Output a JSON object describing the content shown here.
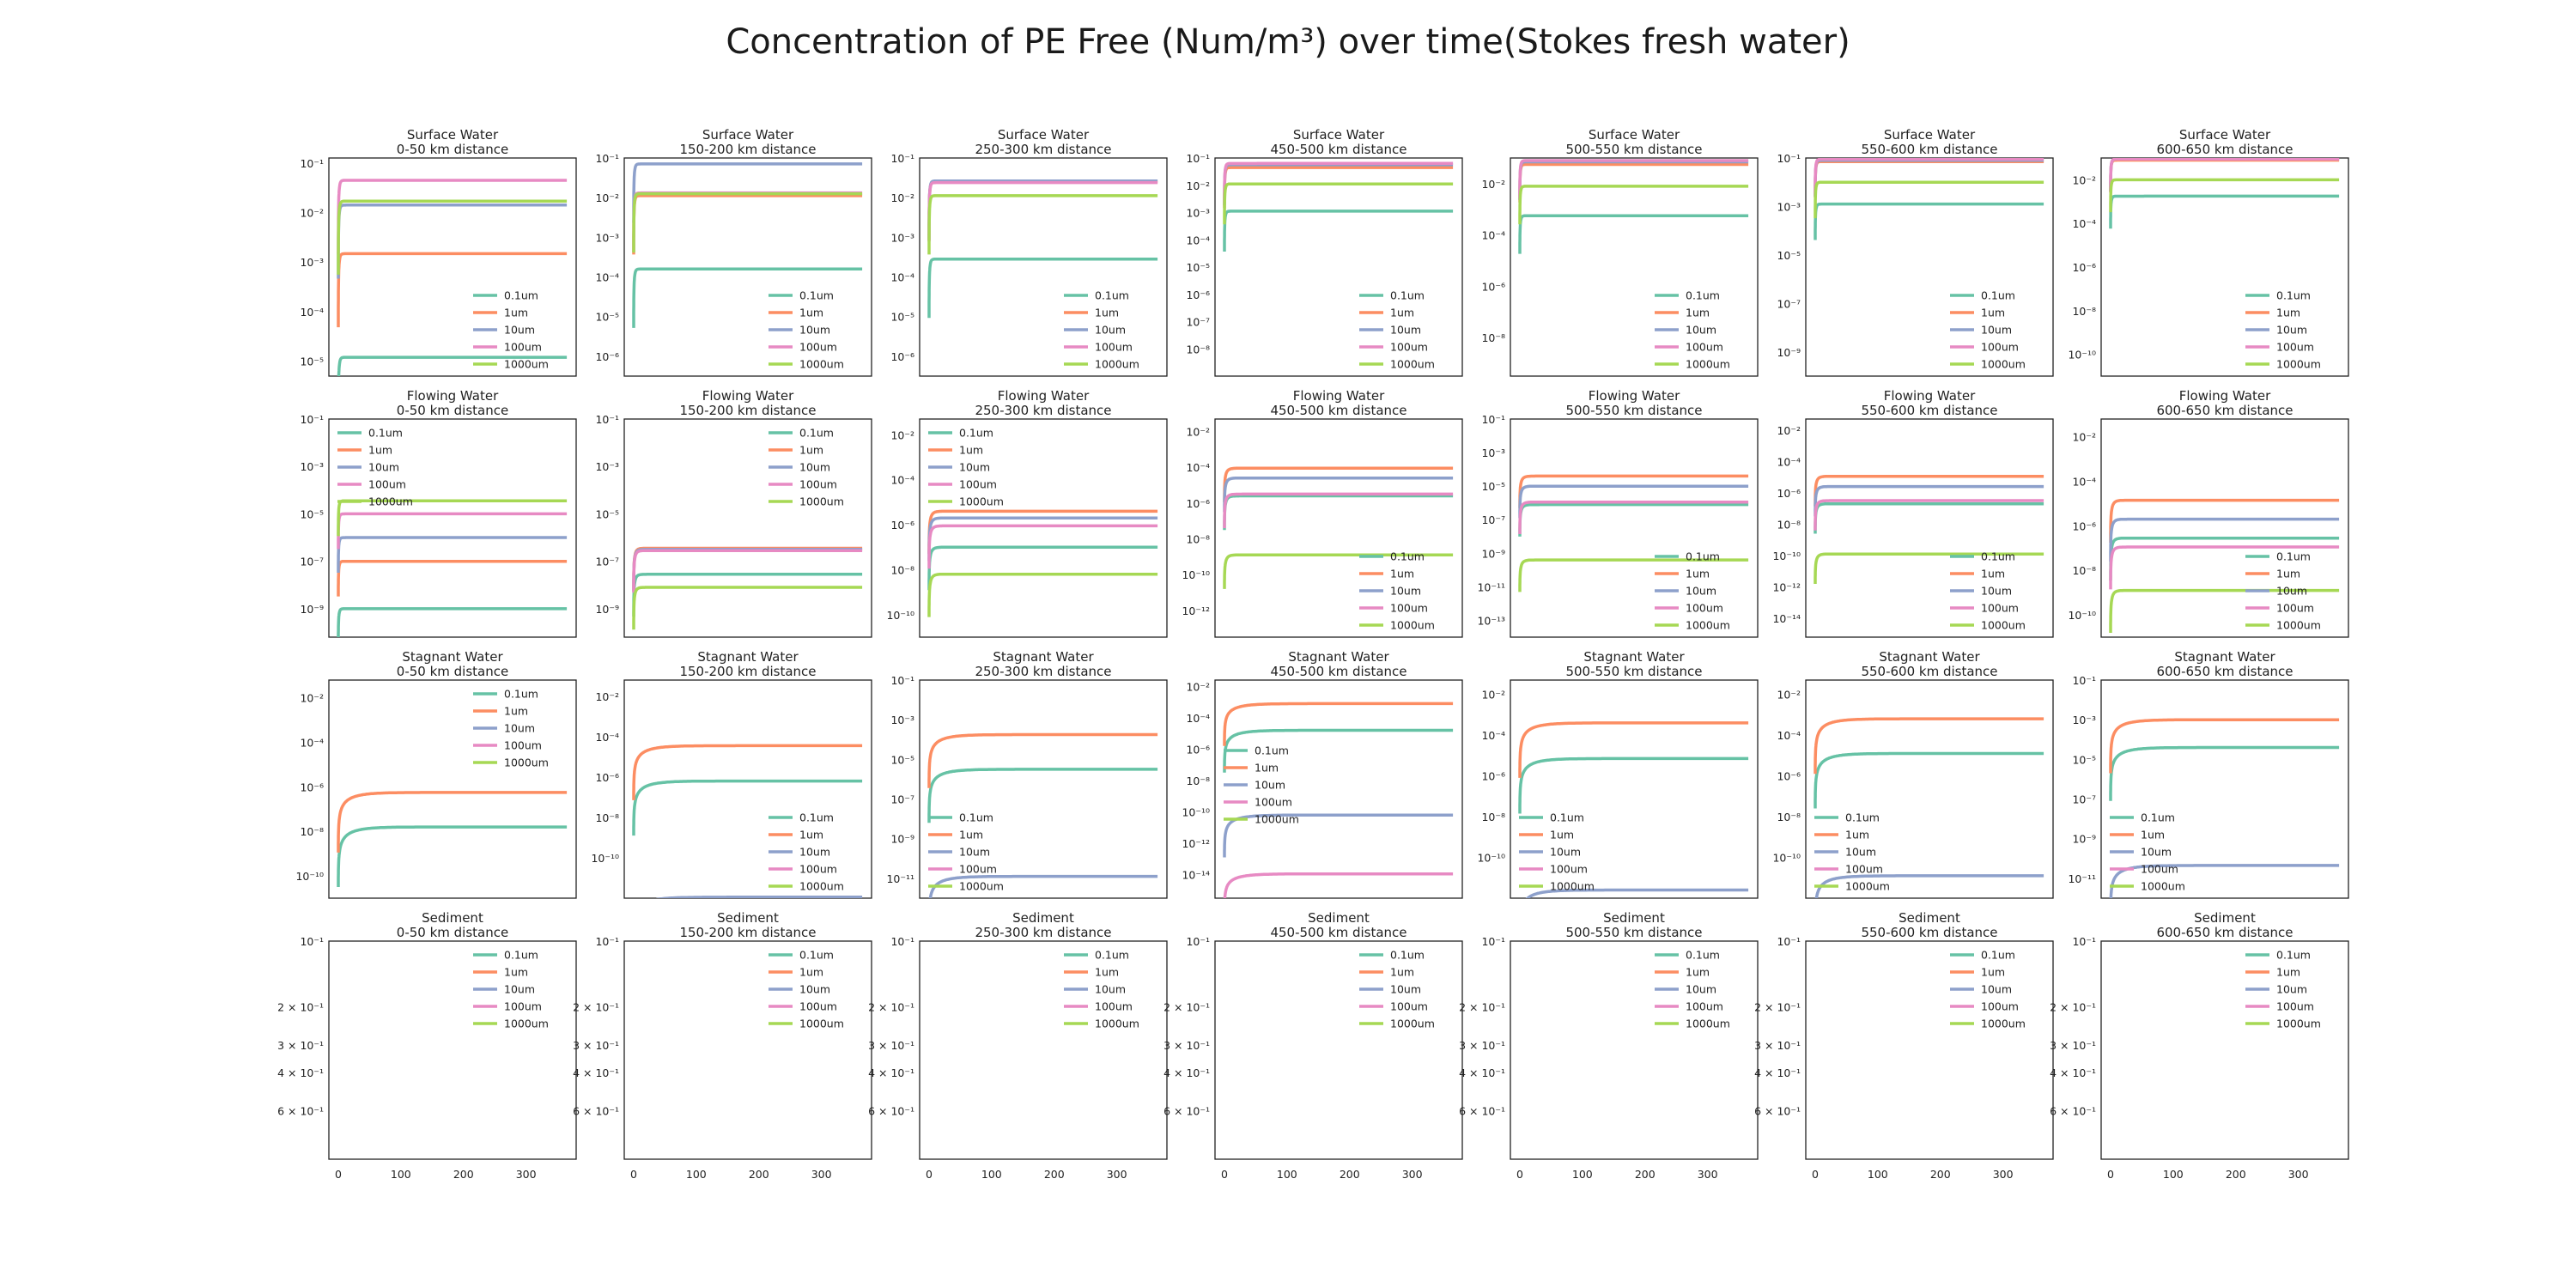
{
  "title": "Concentration of PE Free (Num/m³) over time(Stokes fresh water)",
  "colors": {
    "0.1um": "#66c2a5",
    "1um": "#fc8d62",
    "10um": "#8da0cb",
    "100um": "#e78ac3",
    "1000um": "#a6d854"
  },
  "chart_data": {
    "type": "line",
    "yscale": "log",
    "rows": [
      "Surface Water",
      "Flowing Water",
      "Stagnant Water",
      "Sediment"
    ],
    "columns": [
      "0-50 km distance",
      "150-200 km distance",
      "250-300 km distance",
      "450-500 km distance",
      "500-550 km distance",
      "550-600 km distance",
      "600-650 km distance"
    ],
    "legend": [
      "0.1um",
      "1um",
      "10um",
      "100um",
      "1000um"
    ],
    "x_range": [
      -15,
      380
    ],
    "x_ticks": [
      0,
      100,
      200,
      300
    ],
    "sediment_y_ticks": [
      "10⁻¹",
      "2 × 10⁻¹",
      "3 × 10⁻¹",
      "4 × 10⁻¹",
      "6 × 10⁻¹"
    ],
    "panels": [
      {
        "row": 0,
        "col": 0,
        "ylog": [
          -5.3,
          -0.9
        ],
        "yticks": [
          -1,
          -2,
          -3,
          -4,
          -5
        ],
        "tau": 1.5,
        "legend_pos": "lower right",
        "series": {
          "0.1um": -4.92,
          "1um": -2.83,
          "10um": -1.85,
          "100um": -1.35,
          "1000um": -1.77
        }
      },
      {
        "row": 0,
        "col": 1,
        "ylog": [
          -6.5,
          -1
        ],
        "yticks": [
          -1,
          -2,
          -3,
          -4,
          -5,
          -6
        ],
        "tau": 1.5,
        "legend_pos": "lower right",
        "series": {
          "0.1um": -3.8,
          "1um": -1.95,
          "10um": -1.15,
          "100um": -1.88,
          "1000um": -1.9
        }
      },
      {
        "row": 0,
        "col": 2,
        "ylog": [
          -6.5,
          -1
        ],
        "yticks": [
          -1,
          -2,
          -3,
          -4,
          -5,
          -6
        ],
        "tau": 1.5,
        "legend_pos": "lower right",
        "series": {
          "0.1um": -3.55,
          "1um": -1.6,
          "10um": -1.58,
          "100um": -1.62,
          "1000um": -1.95
        }
      },
      {
        "row": 0,
        "col": 3,
        "ylog": [
          -9,
          -1
        ],
        "yticks": [
          -1,
          -2,
          -3,
          -4,
          -5,
          -6,
          -7,
          -8
        ],
        "tau": 1.5,
        "legend_pos": "lower right",
        "series": {
          "0.1um": -2.95,
          "1um": -1.35,
          "10um": -1.25,
          "100um": -1.2,
          "1000um": -1.95
        }
      },
      {
        "row": 0,
        "col": 4,
        "ylog": [
          -9.5,
          -1
        ],
        "yticks": [
          -2,
          -4,
          -6,
          -8
        ],
        "tau": 1.5,
        "legend_pos": "lower right",
        "series": {
          "0.1um": -3.25,
          "1um": -1.25,
          "10um": -1.15,
          "100um": -1.1,
          "1000um": -2.1
        }
      },
      {
        "row": 0,
        "col": 5,
        "ylog": [
          -10,
          -1
        ],
        "yticks": [
          -1,
          -3,
          -5,
          -7,
          -9
        ],
        "tau": 1.5,
        "legend_pos": "lower right",
        "series": {
          "0.1um": -2.9,
          "1um": -1.15,
          "10um": -1.1,
          "100um": -1.05,
          "1000um": -2.0
        }
      },
      {
        "row": 0,
        "col": 6,
        "ylog": [
          -11,
          -1
        ],
        "yticks": [
          -2,
          -4,
          -6,
          -8,
          -10
        ],
        "tau": 1.5,
        "legend_pos": "lower right",
        "series": {
          "0.1um": -2.75,
          "1um": -1.1,
          "10um": -1.05,
          "100um": -1.05,
          "1000um": -2.0
        }
      },
      {
        "row": 1,
        "col": 0,
        "ylog": [
          -10.2,
          -1
        ],
        "yticks": [
          -1,
          -3,
          -5,
          -7,
          -9
        ],
        "tau": 1.5,
        "legend_pos": "upper left",
        "series": {
          "0.1um": -9.0,
          "1um": -7.0,
          "10um": -6.0,
          "100um": -5.0,
          "1000um": -4.45
        }
      },
      {
        "row": 1,
        "col": 1,
        "ylog": [
          -10.2,
          -1
        ],
        "yticks": [
          -1,
          -3,
          -5,
          -7,
          -9
        ],
        "tau": 3,
        "legend_pos": "upper right",
        "series": {
          "0.1um": -7.55,
          "1um": -6.45,
          "10um": -6.5,
          "100um": -6.55,
          "1000um": -8.1
        }
      },
      {
        "row": 1,
        "col": 2,
        "ylog": [
          -11,
          -1.3
        ],
        "yticks": [
          -2,
          -4,
          -6,
          -8,
          -10
        ],
        "tau": 4,
        "legend_pos": "upper left",
        "series": {
          "0.1um": -7.0,
          "1um": -5.4,
          "10um": -5.7,
          "100um": -6.05,
          "1000um": -8.2
        }
      },
      {
        "row": 1,
        "col": 3,
        "ylog": [
          -13.5,
          -1.3
        ],
        "yticks": [
          -2,
          -4,
          -6,
          -8,
          -10,
          -12
        ],
        "tau": 4,
        "legend_pos": "lower right",
        "series": {
          "0.1um": -5.6,
          "1um": -4.05,
          "10um": -4.6,
          "100um": -5.5,
          "1000um": -8.9
        }
      },
      {
        "row": 1,
        "col": 4,
        "ylog": [
          -14,
          -1
        ],
        "yticks": [
          -1,
          -3,
          -5,
          -7,
          -9,
          -11,
          -13
        ],
        "tau": 4,
        "legend_pos": "lower right",
        "series": {
          "0.1um": -6.1,
          "1um": -4.4,
          "10um": -5.0,
          "100um": -5.95,
          "1000um": -9.4
        }
      },
      {
        "row": 1,
        "col": 5,
        "ylog": [
          -15.2,
          -1.3
        ],
        "yticks": [
          -2,
          -4,
          -6,
          -8,
          -10,
          -12,
          -14
        ],
        "tau": 4,
        "legend_pos": "lower right",
        "series": {
          "0.1um": -6.7,
          "1um": -4.95,
          "10um": -5.6,
          "100um": -6.5,
          "1000um": -9.9
        }
      },
      {
        "row": 1,
        "col": 6,
        "ylog": [
          -11,
          -1.2
        ],
        "yticks": [
          -2,
          -4,
          -6,
          -8,
          -10
        ],
        "tau": 4,
        "legend_pos": "lower right",
        "series": {
          "0.1um": -6.55,
          "1um": -4.85,
          "10um": -5.7,
          "100um": -6.95,
          "1000um": -8.9
        }
      },
      {
        "row": 2,
        "col": 0,
        "ylog": [
          -11,
          -1.2
        ],
        "yticks": [
          -2,
          -4,
          -6,
          -8,
          -10
        ],
        "tau": 25,
        "legend_pos": "upper right",
        "series": {
          "0.1um": -7.8,
          "1um": -6.25,
          "10um": null,
          "100um": null,
          "1000um": null
        }
      },
      {
        "row": 2,
        "col": 1,
        "ylog": [
          -12,
          -1.2
        ],
        "yticks": [
          -2,
          -4,
          -6,
          -8,
          -10
        ],
        "tau": 25,
        "legend_pos": "lower right",
        "series": {
          "0.1um": -6.2,
          "1um": -4.45,
          "10um": -11.95,
          "100um": null,
          "1000um": null
        }
      },
      {
        "row": 2,
        "col": 2,
        "ylog": [
          -12,
          -1
        ],
        "yticks": [
          -1,
          -3,
          -5,
          -7,
          -9,
          -11
        ],
        "tau": 25,
        "legend_pos": "lower left",
        "series": {
          "0.1um": -5.5,
          "1um": -3.75,
          "10um": -10.9,
          "100um": null,
          "1000um": null
        }
      },
      {
        "row": 2,
        "col": 3,
        "ylog": [
          -15.5,
          -1.6
        ],
        "yticks": [
          -2,
          -4,
          -6,
          -8,
          -10,
          -12,
          -14
        ],
        "tau": 25,
        "legend_pos": "middle left",
        "series": {
          "0.1um": -4.8,
          "1um": -3.1,
          "10um": -10.2,
          "100um": -13.95,
          "1000um": null
        }
      },
      {
        "row": 2,
        "col": 4,
        "ylog": [
          -12,
          -1.3
        ],
        "yticks": [
          -2,
          -4,
          -6,
          -8,
          -10
        ],
        "tau": 25,
        "legend_pos": "lower left",
        "series": {
          "0.1um": -5.15,
          "1um": -3.4,
          "10um": -11.6,
          "100um": null,
          "1000um": null
        }
      },
      {
        "row": 2,
        "col": 5,
        "ylog": [
          -12,
          -1.3
        ],
        "yticks": [
          -2,
          -4,
          -6,
          -8,
          -10
        ],
        "tau": 25,
        "legend_pos": "lower left",
        "series": {
          "0.1um": -4.9,
          "1um": -3.2,
          "10um": -10.9,
          "100um": null,
          "1000um": null
        }
      },
      {
        "row": 2,
        "col": 6,
        "ylog": [
          -12,
          -1
        ],
        "yticks": [
          -1,
          -3,
          -5,
          -7,
          -9,
          -11
        ],
        "tau": 25,
        "legend_pos": "lower left",
        "series": {
          "0.1um": -4.4,
          "1um": -3.0,
          "10um": -10.35,
          "100um": null,
          "1000um": null
        }
      }
    ],
    "subtitles": {
      "rows_prefix": true
    }
  }
}
